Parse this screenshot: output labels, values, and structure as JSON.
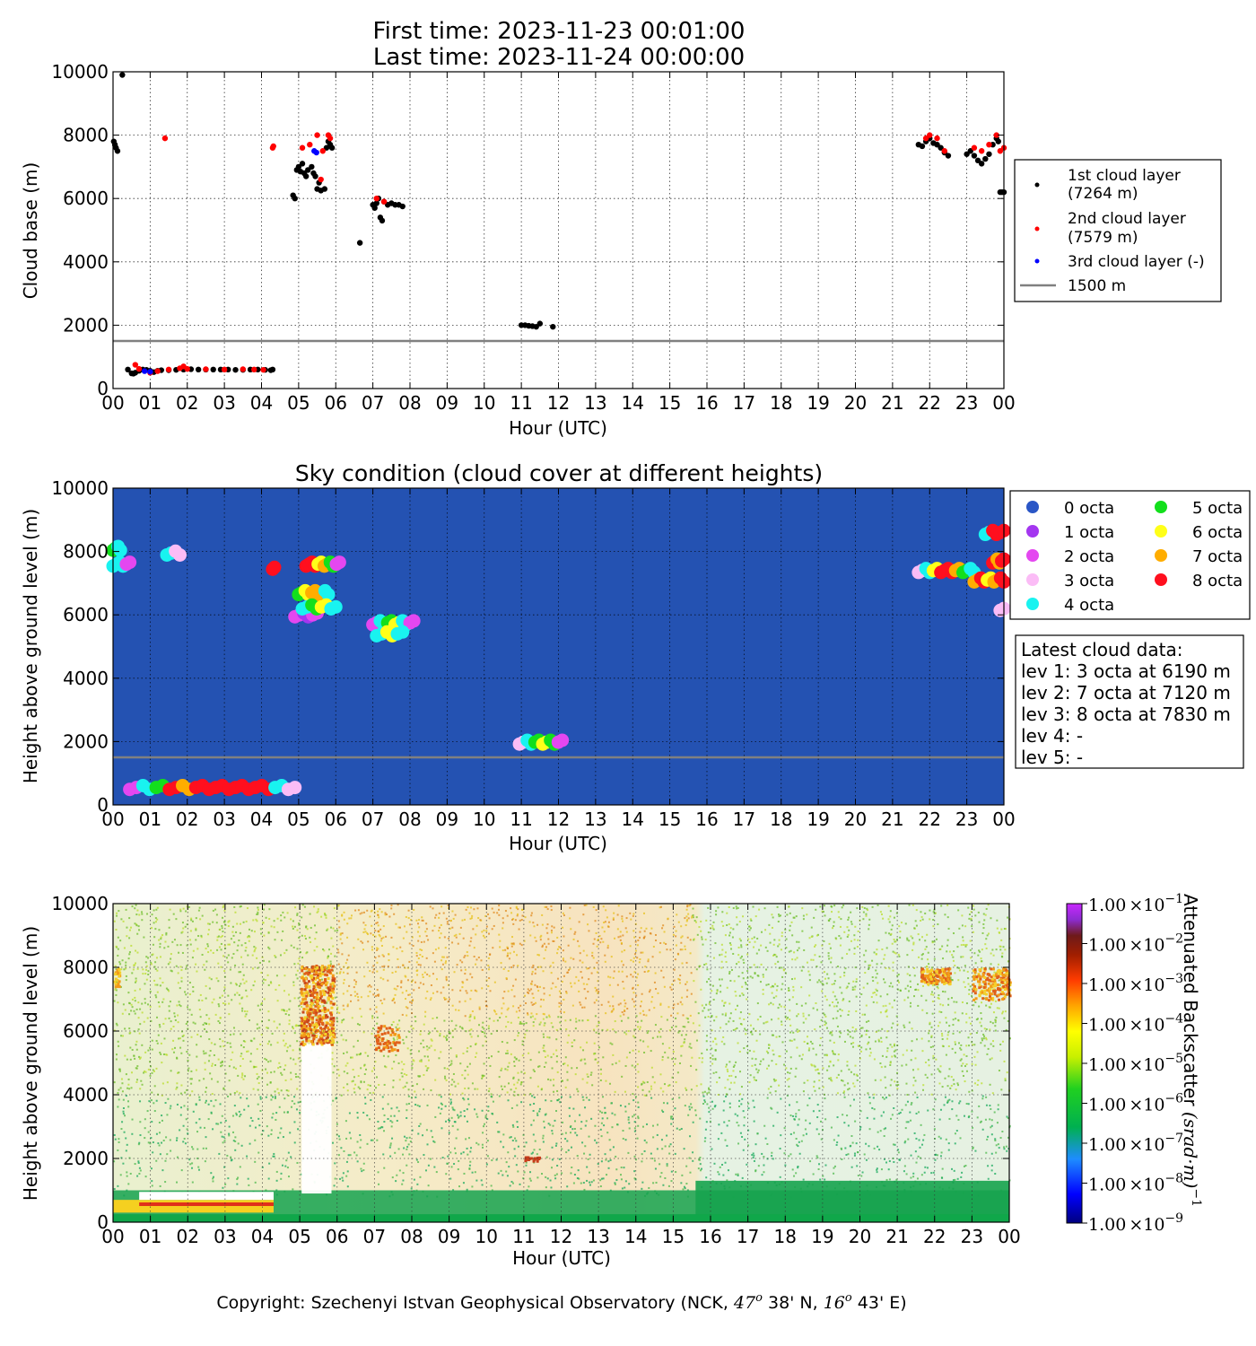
{
  "header": {
    "first_time": "First time: 2023-11-23 00:01:00",
    "last_time": "Last time: 2023-11-24 00:00:00"
  },
  "footer": {
    "copyright_prefix": "Copyright: Szechenyi Istvan Geophysical Observatory (NCK, ",
    "lat_deg": "47",
    "lat_deg_sup": "o",
    "lat_min": " 38' N, ",
    "lon_deg": "16",
    "lon_deg_sup": "o",
    "lon_min": " 43' E)"
  },
  "colors": {
    "layer1": "#000000",
    "layer2": "#ff0000",
    "layer3": "#0000ff",
    "ref_line": "#808080",
    "sky_bg": "#2452b2"
  },
  "octa_colors": [
    "#2a56c6",
    "#a436f0",
    "#e447f0",
    "#fbbcf6",
    "#19f3f0",
    "#13df1c",
    "#ffff19",
    "#ffad00",
    "#ff0f1e"
  ],
  "chart_data": [
    {
      "id": "cloud-base",
      "type": "scatter",
      "title": "",
      "xlabel": "Hour (UTC)",
      "ylabel": "Cloud base (m)",
      "xlim": [
        0,
        24
      ],
      "ylim": [
        0,
        10000
      ],
      "xticks": [
        "00",
        "01",
        "02",
        "03",
        "04",
        "05",
        "06",
        "07",
        "08",
        "09",
        "10",
        "11",
        "12",
        "13",
        "14",
        "15",
        "16",
        "17",
        "18",
        "19",
        "20",
        "21",
        "22",
        "23",
        "00"
      ],
      "yticks": [
        "0",
        "2000",
        "4000",
        "6000",
        "8000",
        "10000"
      ],
      "grid": true,
      "reference_line": {
        "y": 1500,
        "label": "1500 m"
      },
      "legend": {
        "placement": "outside-right",
        "entries": [
          {
            "label1": "1st cloud layer",
            "label2": "(7264 m)",
            "color": "#000000"
          },
          {
            "label1": "2nd cloud layer",
            "label2": "(7579 m)",
            "color": "#ff0000"
          },
          {
            "label1": "3rd cloud layer (-)",
            "label2": "",
            "color": "#0000ff"
          },
          {
            "label1": "1500 m",
            "label2": "",
            "line": true,
            "color": "#808080"
          }
        ]
      },
      "series": [
        {
          "name": "1st cloud layer",
          "color": "#000000",
          "points": [
            [
              0.02,
              7800
            ],
            [
              0.05,
              7700
            ],
            [
              0.08,
              7600
            ],
            [
              0.12,
              7500
            ],
            [
              0.25,
              9900
            ],
            [
              0.4,
              600
            ],
            [
              0.5,
              480
            ],
            [
              0.55,
              470
            ],
            [
              0.6,
              500
            ],
            [
              0.7,
              560
            ],
            [
              0.8,
              600
            ],
            [
              0.9,
              590
            ],
            [
              1.0,
              560
            ],
            [
              1.1,
              520
            ],
            [
              1.2,
              560
            ],
            [
              1.3,
              580
            ],
            [
              1.5,
              580
            ],
            [
              1.7,
              590
            ],
            [
              1.9,
              600
            ],
            [
              2.1,
              610
            ],
            [
              2.3,
              600
            ],
            [
              2.5,
              600
            ],
            [
              2.7,
              600
            ],
            [
              2.9,
              600
            ],
            [
              3.1,
              600
            ],
            [
              3.3,
              590
            ],
            [
              3.5,
              590
            ],
            [
              3.7,
              600
            ],
            [
              3.9,
              600
            ],
            [
              4.1,
              590
            ],
            [
              4.25,
              580
            ],
            [
              4.3,
              600
            ],
            [
              4.85,
              6100
            ],
            [
              4.9,
              6000
            ],
            [
              4.95,
              6900
            ],
            [
              5.0,
              7000
            ],
            [
              5.05,
              6850
            ],
            [
              5.1,
              7100
            ],
            [
              5.15,
              6800
            ],
            [
              5.2,
              6700
            ],
            [
              5.25,
              6900
            ],
            [
              5.35,
              7000
            ],
            [
              5.4,
              6800
            ],
            [
              5.45,
              6700
            ],
            [
              5.5,
              6300
            ],
            [
              5.55,
              6500
            ],
            [
              5.6,
              6250
            ],
            [
              5.7,
              6300
            ],
            [
              5.75,
              7600
            ],
            [
              5.8,
              7800
            ],
            [
              5.85,
              7700
            ],
            [
              5.9,
              7600
            ],
            [
              6.65,
              4600
            ],
            [
              7.0,
              5800
            ],
            [
              7.05,
              5700
            ],
            [
              7.1,
              5850
            ],
            [
              7.15,
              6000
            ],
            [
              7.2,
              5400
            ],
            [
              7.25,
              5300
            ],
            [
              7.3,
              5900
            ],
            [
              7.4,
              5800
            ],
            [
              7.5,
              5850
            ],
            [
              7.6,
              5800
            ],
            [
              7.7,
              5800
            ],
            [
              7.8,
              5750
            ],
            [
              11.0,
              2000
            ],
            [
              11.1,
              2000
            ],
            [
              11.2,
              1980
            ],
            [
              11.3,
              1970
            ],
            [
              11.4,
              1950
            ],
            [
              11.5,
              2050
            ],
            [
              11.85,
              1950
            ],
            [
              21.7,
              7700
            ],
            [
              21.8,
              7650
            ],
            [
              21.9,
              7800
            ],
            [
              22.0,
              7900
            ],
            [
              22.1,
              7750
            ],
            [
              22.2,
              7700
            ],
            [
              22.3,
              7600
            ],
            [
              22.4,
              7450
            ],
            [
              22.5,
              7350
            ],
            [
              23.0,
              7400
            ],
            [
              23.1,
              7500
            ],
            [
              23.2,
              7350
            ],
            [
              23.3,
              7200
            ],
            [
              23.4,
              7100
            ],
            [
              23.5,
              7250
            ],
            [
              23.6,
              7400
            ],
            [
              23.7,
              7700
            ],
            [
              23.8,
              7900
            ],
            [
              23.85,
              7800
            ],
            [
              23.9,
              6200
            ],
            [
              23.95,
              6200
            ],
            [
              24.0,
              6200
            ]
          ]
        },
        {
          "name": "2nd cloud layer",
          "color": "#ff0000",
          "points": [
            [
              0.6,
              750
            ],
            [
              0.7,
              620
            ],
            [
              1.0,
              500
            ],
            [
              1.2,
              550
            ],
            [
              1.4,
              7900
            ],
            [
              1.5,
              600
            ],
            [
              1.8,
              640
            ],
            [
              1.9,
              700
            ],
            [
              2.0,
              620
            ],
            [
              2.5,
              610
            ],
            [
              3.0,
              600
            ],
            [
              3.5,
              610
            ],
            [
              3.8,
              600
            ],
            [
              4.05,
              590
            ],
            [
              4.3,
              7600
            ],
            [
              4.32,
              7650
            ],
            [
              5.1,
              7600
            ],
            [
              5.3,
              7700
            ],
            [
              5.5,
              8000
            ],
            [
              5.6,
              6600
            ],
            [
              5.65,
              7500
            ],
            [
              5.8,
              8000
            ],
            [
              5.85,
              7900
            ],
            [
              7.1,
              6000
            ],
            [
              7.3,
              5900
            ],
            [
              21.9,
              7900
            ],
            [
              22.0,
              8000
            ],
            [
              22.2,
              7900
            ],
            [
              22.4,
              7500
            ],
            [
              23.2,
              7600
            ],
            [
              23.4,
              7500
            ],
            [
              23.6,
              7700
            ],
            [
              23.8,
              8000
            ],
            [
              23.9,
              7500
            ],
            [
              24.0,
              7600
            ]
          ]
        },
        {
          "name": "3rd cloud layer",
          "color": "#0000ff",
          "points": [
            [
              0.85,
              550
            ],
            [
              1.0,
              530
            ],
            [
              5.42,
              7500
            ],
            [
              5.48,
              7450
            ]
          ]
        }
      ]
    },
    {
      "id": "sky-condition",
      "type": "scatter",
      "title": "Sky condition (cloud cover at different heights)",
      "xlabel": "Hour (UTC)",
      "ylabel": "Height above ground level (m)",
      "xlim": [
        0,
        24
      ],
      "ylim": [
        0,
        10000
      ],
      "xticks": [
        "00",
        "01",
        "02",
        "03",
        "04",
        "05",
        "06",
        "07",
        "08",
        "09",
        "10",
        "11",
        "12",
        "13",
        "14",
        "15",
        "16",
        "17",
        "18",
        "19",
        "20",
        "21",
        "22",
        "23",
        "00"
      ],
      "yticks": [
        "0",
        "2000",
        "4000",
        "6000",
        "8000",
        "10000"
      ],
      "grid": true,
      "reference_line": {
        "y": 1500
      },
      "legend": {
        "placement": "outside-right",
        "entries": [
          "0 octa",
          "1 octa",
          "2 octa",
          "3 octa",
          "4 octa",
          "5 octa",
          "6 octa",
          "7 octa",
          "8 octa"
        ]
      },
      "latest": {
        "title": "Latest cloud data:",
        "lines": [
          "lev 1: 3 octa at 6190 m",
          "lev 2: 7 octa at 7120 m",
          "lev 3: 8 octa at 7830 m",
          "lev 4: -",
          "lev 5: -"
        ]
      },
      "clusters": [
        {
          "x0": 0.0,
          "x1": 0.45,
          "y": 7600,
          "octa": [
            4,
            4,
            2
          ]
        },
        {
          "x0": 0.0,
          "x1": 0.2,
          "y": 8100,
          "octa": [
            5,
            4
          ]
        },
        {
          "x0": 1.45,
          "x1": 1.8,
          "y": 7950,
          "octa": [
            4,
            3
          ]
        },
        {
          "x0": 0.45,
          "x1": 4.9,
          "y": 550,
          "octa": [
            2,
            4,
            5,
            8,
            7,
            8,
            8,
            8,
            8,
            8,
            8,
            4,
            3
          ]
        },
        {
          "x0": 4.3,
          "x1": 4.35,
          "y": 7500,
          "octa": [
            8
          ]
        },
        {
          "x0": 4.9,
          "x1": 5.5,
          "y": 6000,
          "octa": [
            2,
            1,
            2
          ]
        },
        {
          "x0": 5.0,
          "x1": 5.8,
          "y": 6700,
          "octa": [
            5,
            6,
            7,
            7,
            4
          ]
        },
        {
          "x0": 5.2,
          "x1": 6.1,
          "y": 7600,
          "octa": [
            8,
            8,
            6,
            7,
            5,
            2
          ]
        },
        {
          "x0": 5.1,
          "x1": 6.0,
          "y": 6250,
          "octa": [
            4,
            5,
            6,
            4
          ]
        },
        {
          "x0": 7.0,
          "x1": 8.1,
          "y": 5750,
          "octa": [
            2,
            4,
            5,
            6,
            4,
            2
          ]
        },
        {
          "x0": 7.1,
          "x1": 7.8,
          "y": 5400,
          "octa": [
            4,
            6,
            4
          ]
        },
        {
          "x0": 10.95,
          "x1": 12.1,
          "y": 1980,
          "octa": [
            3,
            4,
            5,
            6,
            5,
            2
          ]
        },
        {
          "x0": 21.7,
          "x1": 23.2,
          "y": 7400,
          "octa": [
            3,
            4,
            6,
            8,
            8,
            7,
            5,
            4
          ]
        },
        {
          "x0": 23.2,
          "x1": 24.0,
          "y": 7100,
          "octa": [
            7,
            8,
            6,
            7,
            8
          ]
        },
        {
          "x0": 23.5,
          "x1": 24.0,
          "y": 8600,
          "octa": [
            4,
            8,
            8
          ]
        },
        {
          "x0": 23.7,
          "x1": 24.0,
          "y": 7700,
          "octa": [
            8,
            7,
            8
          ]
        },
        {
          "x0": 23.9,
          "x1": 24.0,
          "y": 6200,
          "octa": [
            3
          ]
        }
      ]
    },
    {
      "id": "backscatter",
      "type": "heatmap",
      "title": "",
      "xlabel": "Hour (UTC)",
      "ylabel": "Height above ground level (m)",
      "xlim": [
        0,
        24
      ],
      "ylim": [
        0,
        10000
      ],
      "xticks": [
        "00",
        "01",
        "02",
        "03",
        "04",
        "05",
        "06",
        "07",
        "08",
        "09",
        "10",
        "11",
        "12",
        "13",
        "14",
        "15",
        "16",
        "17",
        "18",
        "19",
        "20",
        "21",
        "22",
        "23",
        "00"
      ],
      "yticks": [
        "0",
        "2000",
        "4000",
        "6000",
        "8000",
        "10000"
      ],
      "colorbar": {
        "label": "Attenuated Backscatter (srad·m)",
        "label_plain": "Attenuated Backscatter ",
        "label_math": "(srad·m)",
        "label_exp": "−1",
        "tick_mantissa": "1.00",
        "tick_base": "×10",
        "tick_exponents": [
          "−9",
          "−8",
          "−7",
          "−6",
          "−5",
          "−4",
          "−3",
          "−2",
          "−1"
        ]
      }
    }
  ]
}
